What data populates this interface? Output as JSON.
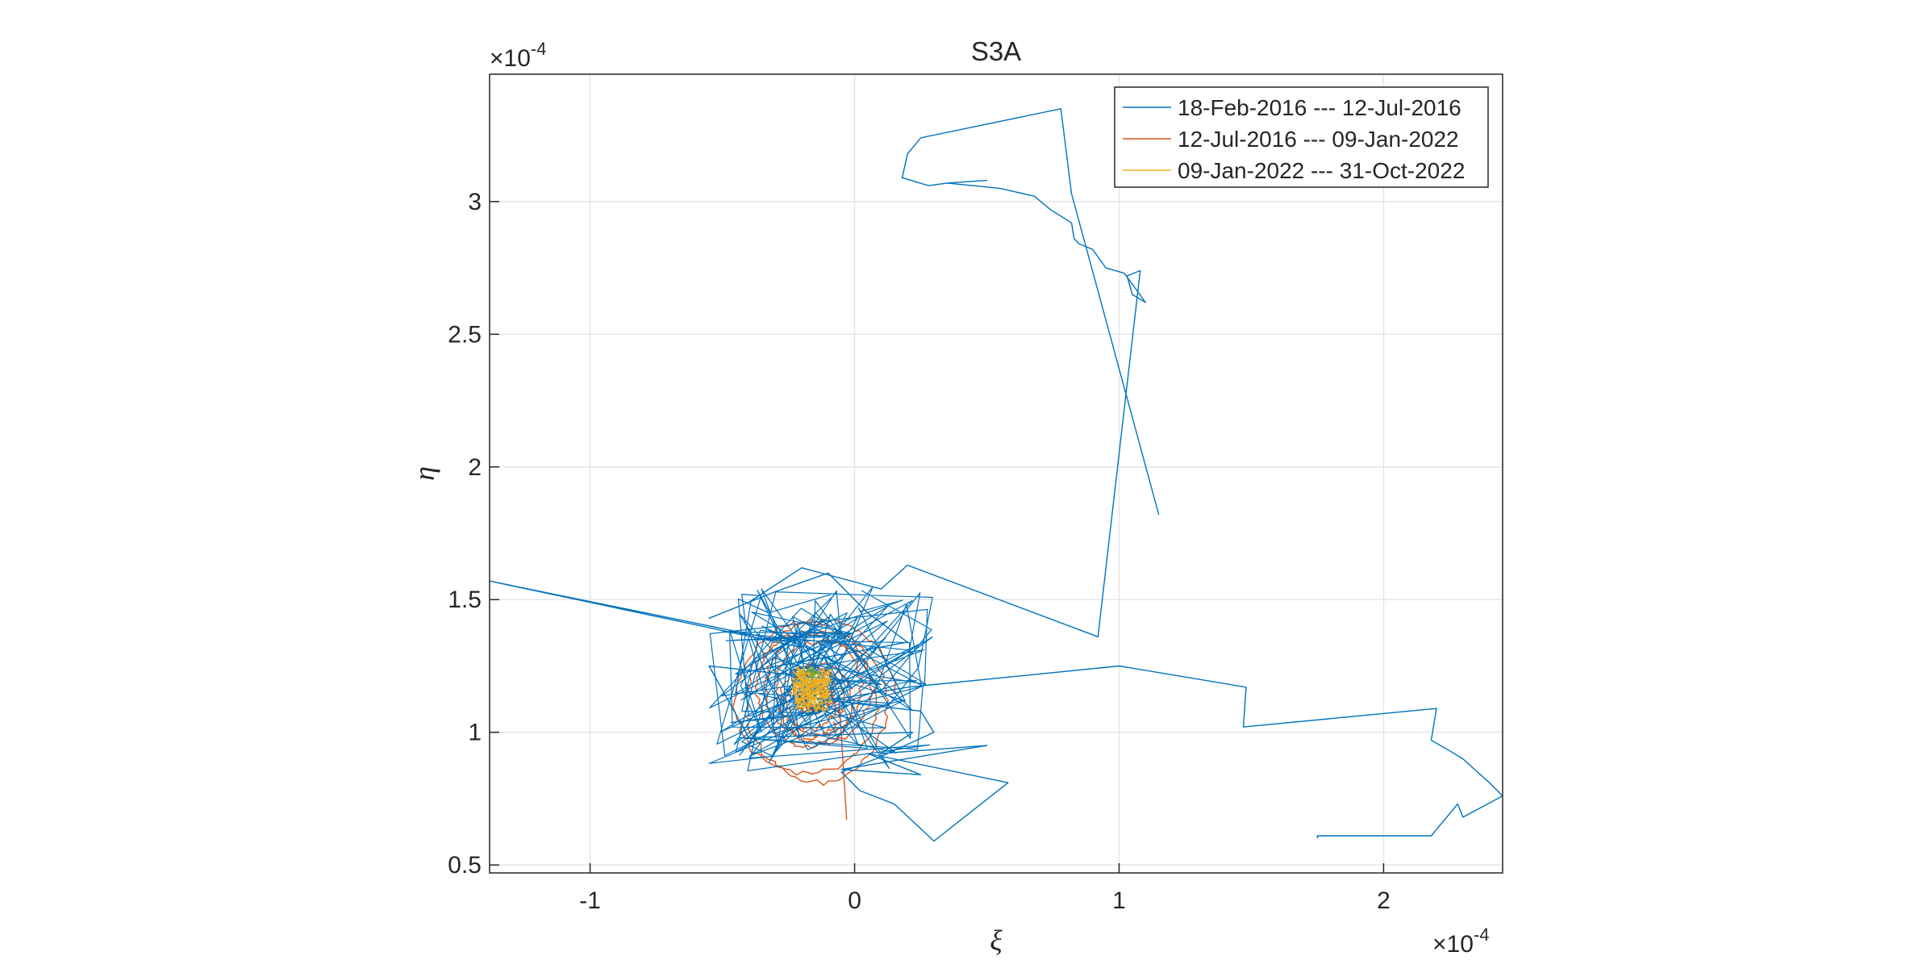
{
  "chart_data": {
    "type": "line",
    "title": "S3A",
    "xlabel": "ξ",
    "ylabel": "η",
    "x_exponent_label": "×10",
    "x_exponent": "-4",
    "y_exponent_label": "×10",
    "y_exponent": "-4",
    "xlim": [
      -1.38,
      2.45
    ],
    "ylim": [
      0.47,
      3.48
    ],
    "xticks": [
      -1,
      0,
      1,
      2
    ],
    "xtick_labels": [
      "-1",
      "0",
      "1",
      "2"
    ],
    "yticks": [
      0.5,
      1,
      1.5,
      2,
      2.5,
      3
    ],
    "ytick_labels": [
      "0.5",
      "1",
      "1.5",
      "2",
      "2.5",
      "3"
    ],
    "grid": true,
    "legend_position": "top-right",
    "colors": [
      "#0072BD",
      "#D95319",
      "#EDB120",
      "#77AC30"
    ],
    "series": [
      {
        "name": "18-Feb-2016 --- 12-Jul-2016",
        "color": "#0072BD",
        "x": [
          1.15,
          0.82,
          0.78,
          0.25,
          0.2,
          0.18,
          0.28,
          0.35,
          0.5,
          0.35,
          0.55,
          0.68,
          0.74,
          0.82,
          0.83,
          0.85,
          0.9,
          0.95,
          1.02,
          1.1,
          1.05,
          1.03,
          1.08,
          0.92,
          0.2,
          0.1,
          -0.2,
          -0.4,
          -0.55,
          -0.3,
          -0.1,
          0.05,
          0.2,
          -0.45,
          -0.25,
          -1.38,
          -0.2,
          -0.35,
          -0.1,
          0.1,
          -0.55,
          -0.4,
          0.22,
          0.1,
          0.5,
          -0.05,
          0.25,
          0.05,
          0.58,
          0.3,
          0.15,
          0.02,
          -0.05,
          0.08,
          0.3,
          0.25,
          -0.1,
          0.2,
          1.0,
          1.48,
          1.47,
          2.2,
          2.18,
          2.25,
          2.3,
          2.4,
          2.45,
          2.3,
          2.28,
          2.18,
          1.75,
          1.75
        ],
        "y": [
          1.82,
          3.03,
          3.35,
          3.24,
          3.18,
          3.09,
          3.06,
          3.07,
          3.08,
          3.07,
          3.05,
          3.02,
          2.97,
          2.92,
          2.86,
          2.84,
          2.82,
          2.75,
          2.73,
          2.62,
          2.65,
          2.72,
          2.74,
          1.36,
          1.63,
          1.54,
          1.62,
          1.49,
          1.43,
          1.53,
          1.6,
          1.45,
          1.34,
          1.22,
          1.34,
          1.57,
          1.32,
          1.4,
          1.28,
          1.18,
          1.25,
          0.98,
          1.0,
          0.92,
          0.95,
          0.86,
          0.84,
          0.92,
          0.81,
          0.59,
          0.73,
          0.78,
          0.85,
          0.9,
          1.0,
          1.08,
          1.12,
          1.17,
          1.25,
          1.17,
          1.02,
          1.09,
          0.97,
          0.93,
          0.9,
          0.81,
          0.76,
          0.68,
          0.73,
          0.61,
          0.61,
          0.6
        ]
      },
      {
        "name": "12-Jul-2016 --- 09-Jan-2022",
        "color": "#D95319",
        "center_x": -0.15,
        "center_y": 1.14,
        "radius_x_range": [
          0.03,
          0.31
        ],
        "radius_y_range": [
          0.04,
          0.33
        ],
        "loops": 11,
        "end_point": [
          -0.03,
          0.67
        ]
      },
      {
        "name": "09-Jan-2022 --- 31-Oct-2022",
        "color": "#EDB120",
        "center_x": -0.16,
        "center_y": 1.16,
        "spread": 0.08
      }
    ]
  }
}
